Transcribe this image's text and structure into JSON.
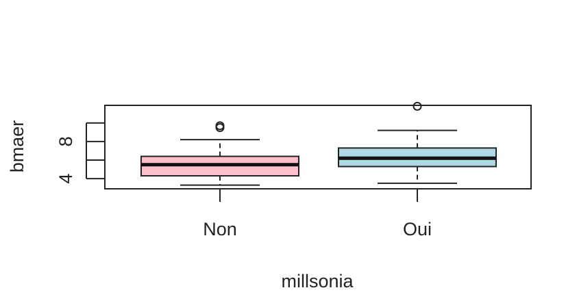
{
  "chart_data": {
    "type": "boxplot",
    "title": "",
    "xlabel": "millsonia",
    "ylabel": "bmaer",
    "categories": [
      "Non",
      "Oui"
    ],
    "ylim": [
      2.9,
      11.9
    ],
    "yticks": [
      4,
      6,
      8,
      10
    ],
    "ytick_labels": [
      "4",
      "",
      "8",
      ""
    ],
    "boxes": [
      {
        "category": "Non",
        "whisker_low": 3.3,
        "q1": 4.3,
        "median": 5.5,
        "q3": 6.4,
        "whisker_high": 8.2,
        "outliers": [
          9.7,
          9.5
        ],
        "fill": "#ffc0cb"
      },
      {
        "category": "Oui",
        "whisker_low": 3.5,
        "q1": 5.3,
        "median": 6.2,
        "q3": 7.3,
        "whisker_high": 9.2,
        "outliers": [
          11.8
        ],
        "fill": "#add8e6"
      }
    ],
    "grid": false,
    "legend": "none"
  }
}
